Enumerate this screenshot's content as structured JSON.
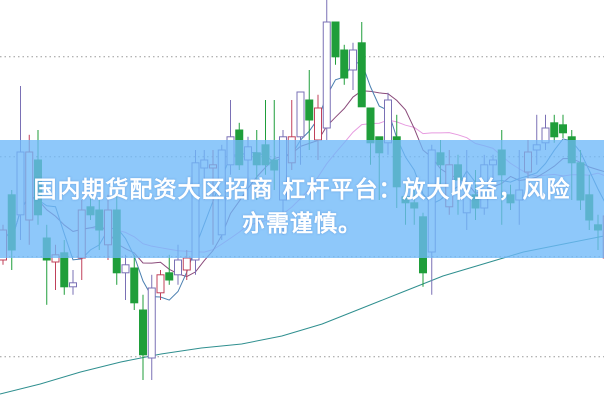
{
  "banner": {
    "line1": "国内期货配资大区招商 杠杆平台：放大收益，风险",
    "line2": "亦需谨慎。"
  },
  "colors": {
    "up": "#c0405a",
    "up_alt": "#7a70b5",
    "down": "#1f9e3a",
    "ma5": "#4a7fb0",
    "ma10": "#8a4a7a",
    "ma20": "#e79be0",
    "ma_long": "#2f8f8f",
    "grid": "#9a9a9a",
    "banner": "#7fbff7"
  },
  "chart_data": {
    "type": "candlestick",
    "title": "",
    "xlabel": "",
    "ylabel": "",
    "grid": true,
    "ylim": [
      0,
      100
    ],
    "gridlines": [
      85.8,
      60.8,
      35.8,
      10.8
    ],
    "candles": [
      [
        35,
        43.8,
        33.8,
        42.5
      ],
      [
        51.3,
        52.5,
        32.5,
        37.5
      ],
      [
        46.3,
        78.5,
        40,
        62
      ],
      [
        45,
        66.3,
        38.8,
        62
      ],
      [
        60,
        67.5,
        43.8,
        46.3
      ],
      [
        40.5,
        43.8,
        23.8,
        35
      ],
      [
        34.5,
        38.8,
        27.5,
        36.3
      ],
      [
        36.8,
        40,
        26.3,
        28.3
      ],
      [
        28.3,
        32.5,
        26.3,
        29.3
      ],
      [
        35.5,
        50,
        30,
        47.5
      ],
      [
        48.3,
        51.3,
        45,
        46.3
      ],
      [
        47.5,
        50,
        37.5,
        42.5
      ],
      [
        38.8,
        51.3,
        35,
        47.5
      ],
      [
        47.5,
        51.3,
        28.8,
        31.8
      ],
      [
        31.8,
        36.3,
        25,
        33.8
      ],
      [
        33,
        36.3,
        22.5,
        24.3
      ],
      [
        22.5,
        26.3,
        5,
        11.3
      ],
      [
        10.5,
        31.3,
        5,
        28
      ],
      [
        26.8,
        32.5,
        25,
        31.3
      ],
      [
        31.8,
        36.3,
        28.8,
        30
      ],
      [
        31.3,
        38.8,
        28.8,
        35
      ],
      [
        32.5,
        37.5,
        30,
        35.5
      ],
      [
        35,
        62.5,
        31.3,
        59.3
      ],
      [
        58,
        62.5,
        50,
        60
      ],
      [
        58,
        62.5,
        38.8,
        58.8
      ],
      [
        41.3,
        63.8,
        40,
        62.5
      ],
      [
        58.8,
        75,
        56.3,
        65.8
      ],
      [
        67.5,
        69.3,
        57.5,
        58.8
      ],
      [
        60,
        65.8,
        50,
        63.3
      ],
      [
        61.8,
        67.5,
        50,
        58.8
      ],
      [
        63.8,
        75,
        56.3,
        58.8
      ],
      [
        60,
        75,
        52.5,
        57.5
      ],
      [
        50,
        67.5,
        41.3,
        65.8
      ],
      [
        59.3,
        75,
        57.5,
        65.8
      ],
      [
        65.8,
        77,
        58.8,
        77
      ],
      [
        75,
        82.5,
        62.5,
        70
      ],
      [
        65,
        76.3,
        60,
        73
      ],
      [
        68,
        100,
        65,
        94.5
      ],
      [
        94.5,
        94.5,
        83.8,
        85.8
      ],
      [
        87.5,
        88.8,
        78.8,
        80.5
      ],
      [
        82.5,
        89.3,
        77.5,
        87.5
      ],
      [
        89.3,
        94.5,
        73.3,
        73.3
      ],
      [
        73,
        73,
        58.8,
        64.3
      ],
      [
        65.8,
        65.8,
        50,
        61.8
      ],
      [
        64.3,
        76.8,
        61.3,
        75
      ],
      [
        65.8,
        71.3,
        48,
        53.3
      ],
      [
        50.8,
        53.8,
        43.8,
        49.3
      ],
      [
        49.3,
        52.5,
        43.8,
        48
      ],
      [
        45.8,
        46.8,
        28.3,
        31.8
      ],
      [
        37,
        63.8,
        26.3,
        62.5
      ],
      [
        61.8,
        65,
        53.8,
        58.8
      ],
      [
        48.3,
        62.5,
        46.3,
        58.8
      ],
      [
        58.8,
        61.3,
        46.3,
        55
      ],
      [
        46.8,
        62.5,
        42.5,
        51.3
      ],
      [
        51.3,
        57.5,
        45,
        48
      ],
      [
        48,
        61.3,
        46.3,
        58.8
      ],
      [
        58.8,
        61.3,
        55,
        60
      ],
      [
        62.5,
        67.5,
        43.8,
        56.3
      ],
      [
        51.3,
        53.8,
        47.5,
        49.3
      ],
      [
        50,
        62.5,
        43.8,
        52.5
      ],
      [
        57,
        65,
        55,
        62
      ],
      [
        62.5,
        71.3,
        58.8,
        63.8
      ],
      [
        64.3,
        71.3,
        62.5,
        68
      ],
      [
        69.3,
        71.3,
        64.3,
        65.8
      ],
      [
        68.8,
        71.3,
        65.5,
        66.8
      ],
      [
        65.8,
        67.5,
        50,
        59.3
      ],
      [
        59.3,
        62.5,
        47.5,
        50
      ],
      [
        51.3,
        56.3,
        42.5,
        45
      ],
      [
        43.8,
        46.3,
        37.5,
        42.5
      ],
      [
        35.5,
        47,
        33,
        46
      ]
    ],
    "ma_long": [
      1.5,
      4,
      7,
      9.5,
      11.5,
      13,
      14,
      16,
      19,
      23,
      27,
      31,
      34,
      37,
      39,
      41
    ]
  }
}
